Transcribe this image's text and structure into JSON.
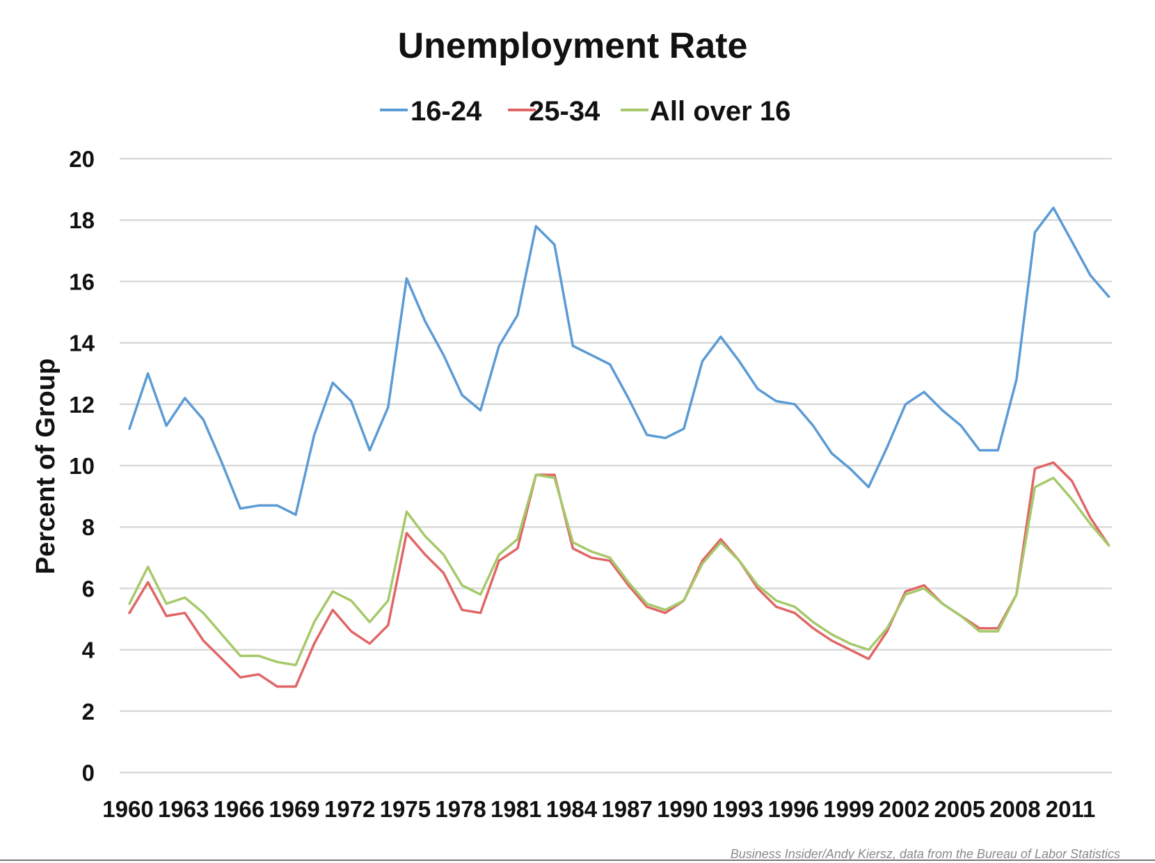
{
  "chart_data": {
    "type": "line",
    "title": "Unemployment Rate",
    "xlabel": "",
    "ylabel": "Percent of Group",
    "ylim": [
      0,
      20
    ],
    "yticks": [
      "0",
      "2",
      "4",
      "6",
      "8",
      "10",
      "12",
      "14",
      "16",
      "18",
      "20"
    ],
    "grid": true,
    "legend_position": "top-center",
    "x": [
      1960,
      1961,
      1962,
      1963,
      1964,
      1965,
      1966,
      1967,
      1968,
      1969,
      1970,
      1971,
      1972,
      1973,
      1974,
      1975,
      1976,
      1977,
      1978,
      1979,
      1980,
      1981,
      1982,
      1983,
      1984,
      1985,
      1986,
      1987,
      1988,
      1989,
      1990,
      1991,
      1992,
      1993,
      1994,
      1995,
      1996,
      1997,
      1998,
      1999,
      2000,
      2001,
      2002,
      2003,
      2004,
      2005,
      2006,
      2007,
      2008,
      2009,
      2010,
      2011,
      2012,
      2013
    ],
    "xtick_labels": [
      "1960",
      "1963",
      "1966",
      "1969",
      "1972",
      "1975",
      "1978",
      "1981",
      "1984",
      "1987",
      "1990",
      "1993",
      "1996",
      "1999",
      "2002",
      "2005",
      "2008",
      "2011"
    ],
    "series": [
      {
        "name": "16-24",
        "color": "#5b9bd5",
        "values": [
          11.2,
          13.0,
          11.3,
          12.2,
          11.5,
          10.1,
          8.6,
          8.7,
          8.7,
          8.4,
          11.0,
          12.7,
          12.1,
          10.5,
          11.9,
          16.1,
          14.7,
          13.6,
          12.3,
          11.8,
          13.9,
          14.9,
          17.8,
          17.2,
          13.9,
          13.6,
          13.3,
          12.2,
          11.0,
          10.9,
          11.2,
          13.4,
          14.2,
          13.4,
          12.5,
          12.1,
          12.0,
          11.3,
          10.4,
          9.9,
          9.3,
          10.6,
          12.0,
          12.4,
          11.8,
          11.3,
          10.5,
          10.5,
          12.8,
          17.6,
          18.4,
          17.3,
          16.2,
          15.5
        ]
      },
      {
        "name": "25-34",
        "color": "#e06666",
        "values": [
          5.2,
          6.2,
          5.1,
          5.2,
          4.3,
          3.7,
          3.1,
          3.2,
          2.8,
          2.8,
          4.2,
          5.3,
          4.6,
          4.2,
          4.8,
          7.8,
          7.1,
          6.5,
          5.3,
          5.2,
          6.9,
          7.3,
          9.7,
          9.7,
          7.3,
          7.0,
          6.9,
          6.1,
          5.4,
          5.2,
          5.6,
          6.9,
          7.6,
          6.9,
          6.0,
          5.4,
          5.2,
          4.7,
          4.3,
          4.0,
          3.7,
          4.6,
          5.9,
          6.1,
          5.5,
          5.1,
          4.7,
          4.7,
          5.8,
          9.9,
          10.1,
          9.5,
          8.3,
          7.4
        ]
      },
      {
        "name": "All over 16",
        "color": "#a5c96a",
        "values": [
          5.5,
          6.7,
          5.5,
          5.7,
          5.2,
          4.5,
          3.8,
          3.8,
          3.6,
          3.5,
          4.9,
          5.9,
          5.6,
          4.9,
          5.6,
          8.5,
          7.7,
          7.1,
          6.1,
          5.8,
          7.1,
          7.6,
          9.7,
          9.6,
          7.5,
          7.2,
          7.0,
          6.2,
          5.5,
          5.3,
          5.6,
          6.8,
          7.5,
          6.9,
          6.1,
          5.6,
          5.4,
          4.9,
          4.5,
          4.2,
          4.0,
          4.7,
          5.8,
          6.0,
          5.5,
          5.1,
          4.6,
          4.6,
          5.8,
          9.3,
          9.6,
          8.9,
          8.1,
          7.4
        ]
      }
    ]
  },
  "source": "Business Insider/Andy Kiersz, data from the Bureau of Labor Statistics"
}
